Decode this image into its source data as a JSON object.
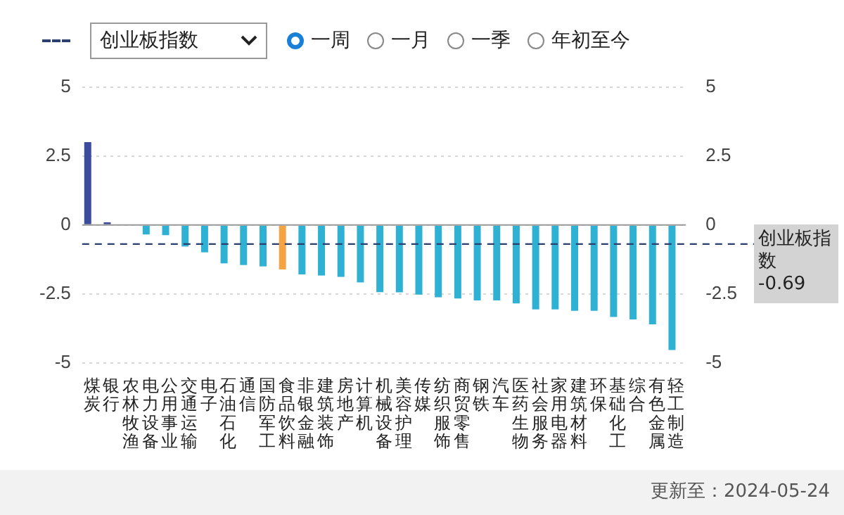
{
  "chart_data": {
    "type": "bar",
    "categories": [
      "煤炭",
      "银行",
      "农林牧渔",
      "电力设备",
      "公用事业",
      "交通运输",
      "电子",
      "石油石化",
      "通信",
      "国防军工",
      "食品饮料",
      "非银金融",
      "建筑装饰",
      "房地产",
      "计算机",
      "机械设备",
      "美容护理",
      "传媒",
      "纺织服饰",
      "商贸零售",
      "钢铁",
      "汽车",
      "医药生物",
      "社会服务",
      "家用电器",
      "建筑材料",
      "环保",
      "基础化工",
      "综合",
      "有色金属",
      "轻工制造"
    ],
    "values": [
      3.0,
      0.1,
      null,
      -0.34,
      -0.37,
      -0.78,
      -0.99,
      -1.39,
      -1.45,
      -1.5,
      -1.61,
      -1.79,
      -1.83,
      -1.88,
      -2.08,
      -2.43,
      -2.44,
      -2.52,
      -2.62,
      -2.66,
      -2.73,
      -2.73,
      -2.84,
      -3.06,
      -3.06,
      -3.11,
      -3.11,
      -3.33,
      -3.42,
      -3.6,
      -4.53
    ],
    "colors": [
      "#3c4b9b",
      "#3c4b9b",
      "#3c4b9b",
      "#2fb1d4",
      "#2fb1d4",
      "#2fb1d4",
      "#2fb1d4",
      "#2fb1d4",
      "#2fb1d4",
      "#2fb1d4",
      "#f4a443",
      "#2fb1d4",
      "#2fb1d4",
      "#2fb1d4",
      "#2fb1d4",
      "#2fb1d4",
      "#2fb1d4",
      "#2fb1d4",
      "#2fb1d4",
      "#2fb1d4",
      "#2fb1d4",
      "#2fb1d4",
      "#2fb1d4",
      "#2fb1d4",
      "#2fb1d4",
      "#2fb1d4",
      "#2fb1d4",
      "#2fb1d4",
      "#2fb1d4",
      "#2fb1d4",
      "#2fb1d4"
    ],
    "ylim": [
      -5,
      5
    ],
    "yticks": [
      -5,
      -2.5,
      0,
      2.5,
      5
    ],
    "y2lim": [
      -5,
      5
    ],
    "y2ticks": [
      -5,
      -2.5,
      0,
      2.5,
      5
    ],
    "grid": "y",
    "ref_lines": [
      {
        "axis": "y",
        "value": -0.69,
        "label": "创业板指数",
        "color": "#2b3f6e",
        "line_style": "dashed"
      }
    ],
    "annotations": [
      "一周",
      "一月",
      "一季",
      "年初至今",
      "-0.69",
      "更新至：2024-05-24"
    ]
  }
}
